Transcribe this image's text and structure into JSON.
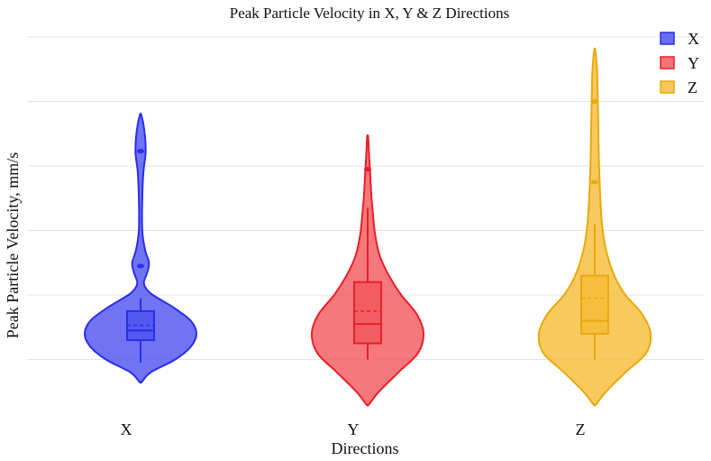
{
  "chart_data": {
    "type": "violin",
    "title": "Peak Particle Velocity in X, Y & Z Directions",
    "xlabel": "Directions",
    "ylabel": "Peak Particle Velocity, mm/s",
    "categories": [
      "X",
      "Y",
      "Z"
    ],
    "ylim": [
      0,
      6
    ],
    "grid": true,
    "legend": {
      "position": "top-right",
      "entries": [
        "X",
        "Y",
        "Z"
      ]
    },
    "series": [
      {
        "name": "X",
        "color": "#2a2ee8",
        "fill": "#5055f0",
        "kde_range": [
          0.65,
          4.8
        ],
        "density_profile": [
          [
            0.65,
            0.02
          ],
          [
            0.8,
            0.18
          ],
          [
            1.0,
            0.62
          ],
          [
            1.2,
            0.9
          ],
          [
            1.4,
            1.0
          ],
          [
            1.6,
            0.9
          ],
          [
            1.8,
            0.6
          ],
          [
            2.0,
            0.22
          ],
          [
            2.1,
            0.1
          ],
          [
            2.2,
            0.06
          ],
          [
            2.35,
            0.12
          ],
          [
            2.5,
            0.15
          ],
          [
            2.7,
            0.08
          ],
          [
            3.0,
            0.03
          ],
          [
            3.5,
            0.03
          ],
          [
            3.9,
            0.05
          ],
          [
            4.2,
            0.09
          ],
          [
            4.45,
            0.08
          ],
          [
            4.65,
            0.05
          ],
          [
            4.8,
            0.01
          ]
        ],
        "box": {
          "whisker_low": 0.95,
          "q1": 1.3,
          "median": 1.45,
          "mean": 1.53,
          "q3": 1.75,
          "whisker_high": 1.95
        },
        "outliers": [
          2.45,
          4.23
        ]
      },
      {
        "name": "Y",
        "color": "#e8202a",
        "fill": "#f25a5f",
        "kde_range": [
          0.3,
          4.45
        ],
        "density_profile": [
          [
            0.3,
            0.02
          ],
          [
            0.5,
            0.2
          ],
          [
            0.8,
            0.55
          ],
          [
            1.1,
            0.9
          ],
          [
            1.4,
            1.0
          ],
          [
            1.7,
            0.88
          ],
          [
            2.0,
            0.6
          ],
          [
            2.3,
            0.38
          ],
          [
            2.6,
            0.22
          ],
          [
            2.9,
            0.14
          ],
          [
            3.2,
            0.1
          ],
          [
            3.5,
            0.07
          ],
          [
            3.8,
            0.05
          ],
          [
            4.1,
            0.03
          ],
          [
            4.45,
            0.01
          ]
        ],
        "box": {
          "whisker_low": 1.0,
          "q1": 1.25,
          "median": 1.55,
          "mean": 1.75,
          "q3": 2.2,
          "whisker_high": 3.35
        },
        "outliers": [
          3.95
        ]
      },
      {
        "name": "Z",
        "color": "#e9a90d",
        "fill": "#f5bd3c",
        "kde_range": [
          0.3,
          5.8
        ],
        "density_profile": [
          [
            0.3,
            0.02
          ],
          [
            0.5,
            0.2
          ],
          [
            0.8,
            0.55
          ],
          [
            1.1,
            0.92
          ],
          [
            1.4,
            1.0
          ],
          [
            1.7,
            0.85
          ],
          [
            2.0,
            0.55
          ],
          [
            2.3,
            0.35
          ],
          [
            2.7,
            0.2
          ],
          [
            3.1,
            0.13
          ],
          [
            3.5,
            0.1
          ],
          [
            3.9,
            0.08
          ],
          [
            4.3,
            0.07
          ],
          [
            4.8,
            0.06
          ],
          [
            5.2,
            0.05
          ],
          [
            5.5,
            0.04
          ],
          [
            5.8,
            0.01
          ]
        ],
        "box": {
          "whisker_low": 1.0,
          "q1": 1.4,
          "median": 1.6,
          "mean": 1.95,
          "q3": 2.3,
          "whisker_high": 3.1
        },
        "outliers": [
          3.75,
          5.0
        ]
      }
    ]
  }
}
